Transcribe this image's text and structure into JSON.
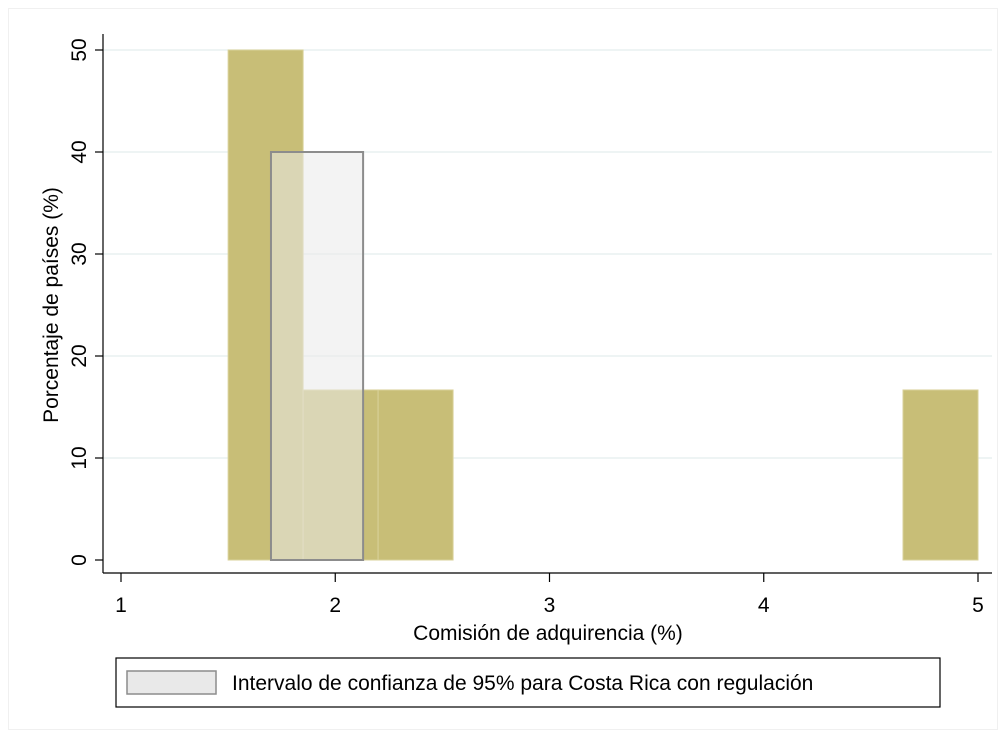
{
  "chart_data": {
    "type": "bar",
    "title": "",
    "xlabel": "Comisión de adquirencia (%)",
    "ylabel": "Porcentaje de países (%)",
    "xlim": [
      1,
      5
    ],
    "ylim": [
      0,
      50
    ],
    "x_ticks": [
      "1",
      "2",
      "3",
      "4",
      "5"
    ],
    "y_ticks": [
      "0",
      "10",
      "20",
      "30",
      "40",
      "50"
    ],
    "grid": true,
    "series": [
      {
        "bins": [
          {
            "x0": 1.5,
            "x1": 1.85,
            "value": 50
          },
          {
            "x0": 1.85,
            "x1": 2.2,
            "value": 16.67
          },
          {
            "x0": 2.2,
            "x1": 2.55,
            "value": 16.67
          },
          {
            "x0": 4.65,
            "x1": 5.0,
            "value": 16.67
          }
        ],
        "color": "#c8be77"
      }
    ],
    "interval": {
      "name": "Intervalo de confianza de 95% para Costa Rica con regulación",
      "x0": 1.7,
      "x1": 2.13,
      "value": 40,
      "fill": "#e9e9e9",
      "stroke": "#8c8c8c"
    },
    "legend": {
      "position": "bottom",
      "label": "Intervalo de confianza de 95% para Costa Rica con regulación"
    }
  }
}
